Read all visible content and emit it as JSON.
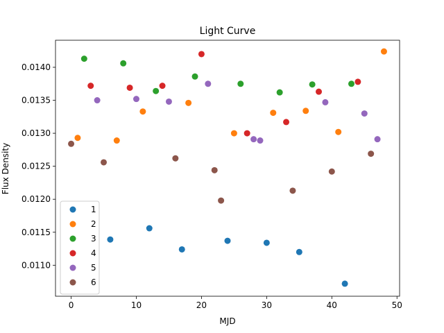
{
  "chart_data": {
    "type": "scatter",
    "title": "Light Curve",
    "xlabel": "MJD",
    "ylabel": "Flux Density",
    "xlim": [
      -2.4,
      50.4
    ],
    "ylim": [
      0.01053,
      0.01441
    ],
    "xticks": [
      0,
      10,
      20,
      30,
      40,
      50
    ],
    "yticks": [
      0.011,
      0.0115,
      0.012,
      0.0125,
      0.013,
      0.0135,
      0.014
    ],
    "ytick_labels": [
      "0.0110",
      "0.0115",
      "0.0120",
      "0.0125",
      "0.0130",
      "0.0135",
      "0.0140"
    ],
    "grid": false,
    "legend_position": "lower-left",
    "series": [
      {
        "name": "1",
        "color": "#1f77b4",
        "x": [
          6,
          12,
          17,
          24,
          30,
          35,
          42
        ],
        "y": [
          0.01139,
          0.01156,
          0.01124,
          0.01137,
          0.01134,
          0.0112,
          0.01072
        ]
      },
      {
        "name": "2",
        "color": "#ff7f0e",
        "x": [
          1,
          7,
          11,
          18,
          25,
          31,
          36,
          41,
          48
        ],
        "y": [
          0.01293,
          0.01289,
          0.01333,
          0.01346,
          0.013,
          0.01331,
          0.01334,
          0.01302,
          0.01424
        ]
      },
      {
        "name": "3",
        "color": "#2ca02c",
        "x": [
          2,
          8,
          13,
          19,
          26,
          32,
          37,
          43
        ],
        "y": [
          0.01413,
          0.01406,
          0.01364,
          0.01386,
          0.01375,
          0.01362,
          0.01374,
          0.01375
        ]
      },
      {
        "name": "4",
        "color": "#d62728",
        "x": [
          3,
          9,
          14,
          20,
          27,
          33,
          38,
          44
        ],
        "y": [
          0.01372,
          0.01369,
          0.01372,
          0.0142,
          0.013,
          0.01317,
          0.01363,
          0.01378
        ]
      },
      {
        "name": "5",
        "color": "#9467bd",
        "x": [
          4,
          10,
          15,
          21,
          28,
          29,
          39,
          45,
          47
        ],
        "y": [
          0.0135,
          0.01352,
          0.01348,
          0.01375,
          0.01291,
          0.01289,
          0.01347,
          0.0133,
          0.01291
        ]
      },
      {
        "name": "6",
        "color": "#8c564b",
        "x": [
          0,
          5,
          16,
          22,
          23,
          34,
          40,
          46
        ],
        "y": [
          0.01284,
          0.01256,
          0.01262,
          0.01244,
          0.01198,
          0.01213,
          0.01242,
          0.01269
        ]
      }
    ]
  }
}
